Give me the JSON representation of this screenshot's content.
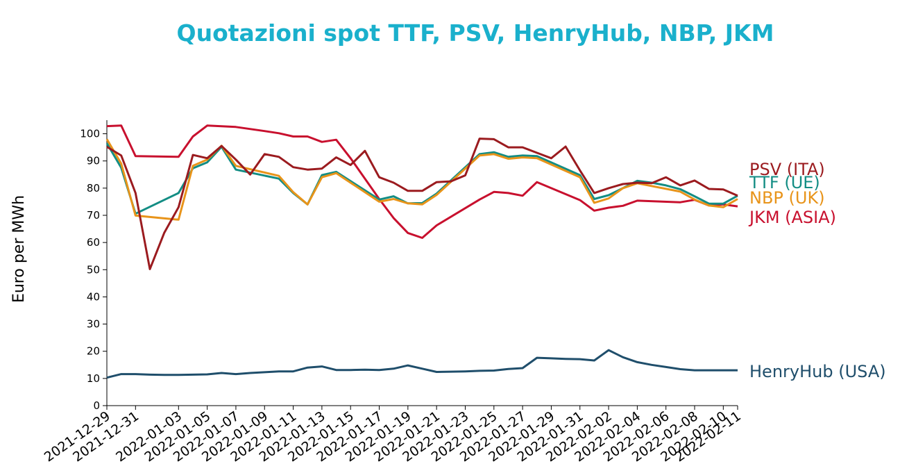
{
  "chart_data": {
    "type": "line",
    "title": "Quotazioni spot TTF, PSV, HenryHub, NBP, JKM",
    "xlabel": "",
    "ylabel": "Euro per MWh",
    "ylim": [
      0,
      105
    ],
    "yticks": [
      0,
      10,
      20,
      30,
      40,
      50,
      60,
      70,
      80,
      90,
      100
    ],
    "xlim": [
      "2021-12-29",
      "2022-02-11"
    ],
    "xtick_labels": [
      "2021-12-29",
      "2021-12-31",
      "2022-01-03",
      "2022-01-05",
      "2022-01-07",
      "2022-01-09",
      "2022-01-11",
      "2022-01-13",
      "2022-01-15",
      "2022-01-17",
      "2022-01-19",
      "2022-01-21",
      "2022-01-23",
      "2022-01-25",
      "2022-01-27",
      "2022-01-29",
      "2022-01-31",
      "2022-02-02",
      "2022-02-04",
      "2022-02-06",
      "2022-02-08",
      "2022-02-10",
      "2022-02-11"
    ],
    "grid": false,
    "legend": "right, labels at line ends",
    "series": [
      {
        "name": "HenryHub (USA)",
        "color": "#1f4e6b",
        "points": [
          [
            "2021-12-29",
            10.3
          ],
          [
            "2021-12-30",
            11.6
          ],
          [
            "2021-12-31",
            11.6
          ],
          [
            "2022-01-01",
            11.4
          ],
          [
            "2022-01-02",
            11.3
          ],
          [
            "2022-01-03",
            11.3
          ],
          [
            "2022-01-04",
            11.4
          ],
          [
            "2022-01-05",
            11.5
          ],
          [
            "2022-01-06",
            12.0
          ],
          [
            "2022-01-07",
            11.6
          ],
          [
            "2022-01-08",
            12.0
          ],
          [
            "2022-01-09",
            12.3
          ],
          [
            "2022-01-10",
            12.6
          ],
          [
            "2022-01-11",
            12.6
          ],
          [
            "2022-01-12",
            14.0
          ],
          [
            "2022-01-13",
            14.4
          ],
          [
            "2022-01-14",
            13.1
          ],
          [
            "2022-01-15",
            13.1
          ],
          [
            "2022-01-16",
            13.2
          ],
          [
            "2022-01-17",
            13.1
          ],
          [
            "2022-01-18",
            13.6
          ],
          [
            "2022-01-19",
            14.8
          ],
          [
            "2022-01-20",
            13.6
          ],
          [
            "2022-01-21",
            12.4
          ],
          [
            "2022-01-22",
            12.5
          ],
          [
            "2022-01-23",
            12.6
          ],
          [
            "2022-01-24",
            12.8
          ],
          [
            "2022-01-25",
            12.9
          ],
          [
            "2022-01-26",
            13.5
          ],
          [
            "2022-01-27",
            13.8
          ],
          [
            "2022-01-28",
            17.6
          ],
          [
            "2022-01-29",
            17.4
          ],
          [
            "2022-01-30",
            17.2
          ],
          [
            "2022-01-31",
            17.1
          ],
          [
            "2022-02-01",
            16.6
          ],
          [
            "2022-02-02",
            20.4
          ],
          [
            "2022-02-03",
            17.8
          ],
          [
            "2022-02-04",
            16.0
          ],
          [
            "2022-02-05",
            15.0
          ],
          [
            "2022-02-06",
            14.2
          ],
          [
            "2022-02-07",
            13.4
          ],
          [
            "2022-02-08",
            13.0
          ],
          [
            "2022-02-09",
            13.0
          ],
          [
            "2022-02-10",
            13.0
          ],
          [
            "2022-02-11",
            13.0
          ]
        ]
      },
      {
        "name": "JKM (ASIA)",
        "color": "#c8102e",
        "points": [
          [
            "2021-12-29",
            102.8
          ],
          [
            "2021-12-30",
            103.0
          ],
          [
            "2021-12-31",
            91.8
          ],
          [
            "2022-01-03",
            91.5
          ],
          [
            "2022-01-04",
            99.0
          ],
          [
            "2022-01-05",
            103.0
          ],
          [
            "2022-01-07",
            102.5
          ],
          [
            "2022-01-09",
            101.0
          ],
          [
            "2022-01-10",
            100.2
          ],
          [
            "2022-01-11",
            99.0
          ],
          [
            "2022-01-12",
            99.0
          ],
          [
            "2022-01-13",
            97.0
          ],
          [
            "2022-01-14",
            97.8
          ],
          [
            "2022-01-15",
            91.0
          ],
          [
            "2022-01-17",
            76.0
          ],
          [
            "2022-01-18",
            69.0
          ],
          [
            "2022-01-19",
            63.5
          ],
          [
            "2022-01-20",
            61.7
          ],
          [
            "2022-01-21",
            66.3
          ],
          [
            "2022-01-24",
            75.8
          ],
          [
            "2022-01-25",
            78.6
          ],
          [
            "2022-01-26",
            78.2
          ],
          [
            "2022-01-27",
            77.2
          ],
          [
            "2022-01-28",
            82.2
          ],
          [
            "2022-01-31",
            75.6
          ],
          [
            "2022-02-01",
            71.7
          ],
          [
            "2022-02-02",
            72.8
          ],
          [
            "2022-02-03",
            73.5
          ],
          [
            "2022-02-04",
            75.4
          ],
          [
            "2022-02-07",
            74.8
          ],
          [
            "2022-02-08",
            75.7
          ],
          [
            "2022-02-09",
            73.6
          ],
          [
            "2022-02-10",
            74.0
          ],
          [
            "2022-02-11",
            73.3
          ]
        ]
      },
      {
        "name": "TTF (UE)",
        "color": "#138d84",
        "points": [
          [
            "2021-12-29",
            96.5
          ],
          [
            "2021-12-30",
            87.5
          ],
          [
            "2021-12-31",
            70.6
          ],
          [
            "2022-01-03",
            78.2
          ],
          [
            "2022-01-04",
            87.3
          ],
          [
            "2022-01-05",
            89.5
          ],
          [
            "2022-01-06",
            95.2
          ],
          [
            "2022-01-07",
            86.8
          ],
          [
            "2022-01-10",
            83.5
          ],
          [
            "2022-01-11",
            78.2
          ],
          [
            "2022-01-12",
            74.0
          ],
          [
            "2022-01-13",
            84.8
          ],
          [
            "2022-01-14",
            86.0
          ],
          [
            "2022-01-17",
            75.8
          ],
          [
            "2022-01-18",
            77.0
          ],
          [
            "2022-01-19",
            74.4
          ],
          [
            "2022-01-20",
            74.5
          ],
          [
            "2022-01-21",
            78.0
          ],
          [
            "2022-01-24",
            92.5
          ],
          [
            "2022-01-25",
            93.2
          ],
          [
            "2022-01-26",
            91.5
          ],
          [
            "2022-01-27",
            92.0
          ],
          [
            "2022-01-28",
            91.8
          ],
          [
            "2022-01-31",
            84.8
          ],
          [
            "2022-02-01",
            76.0
          ],
          [
            "2022-02-02",
            77.4
          ],
          [
            "2022-02-03",
            80.0
          ],
          [
            "2022-02-04",
            82.7
          ],
          [
            "2022-02-05",
            82.0
          ],
          [
            "2022-02-06",
            81.0
          ],
          [
            "2022-02-07",
            79.6
          ],
          [
            "2022-02-08",
            77.0
          ],
          [
            "2022-02-09",
            74.3
          ],
          [
            "2022-02-10",
            74.3
          ],
          [
            "2022-02-11",
            77.2
          ]
        ]
      },
      {
        "name": "NBP (UK)",
        "color": "#e8941a",
        "points": [
          [
            "2021-12-29",
            98.0
          ],
          [
            "2021-12-30",
            89.0
          ],
          [
            "2021-12-31",
            69.9
          ],
          [
            "2022-01-03",
            68.4
          ],
          [
            "2022-01-04",
            88.2
          ],
          [
            "2022-01-05",
            90.5
          ],
          [
            "2022-01-06",
            95.6
          ],
          [
            "2022-01-07",
            88.2
          ],
          [
            "2022-01-10",
            84.5
          ],
          [
            "2022-01-11",
            78.5
          ],
          [
            "2022-01-12",
            74.0
          ],
          [
            "2022-01-13",
            84.0
          ],
          [
            "2022-01-14",
            85.5
          ],
          [
            "2022-01-17",
            75.0
          ],
          [
            "2022-01-18",
            76.0
          ],
          [
            "2022-01-19",
            74.4
          ],
          [
            "2022-01-20",
            74.0
          ],
          [
            "2022-01-21",
            77.5
          ],
          [
            "2022-01-24",
            92.0
          ],
          [
            "2022-01-25",
            92.5
          ],
          [
            "2022-01-26",
            90.8
          ],
          [
            "2022-01-27",
            91.3
          ],
          [
            "2022-01-28",
            91.0
          ],
          [
            "2022-01-31",
            84.0
          ],
          [
            "2022-02-01",
            74.6
          ],
          [
            "2022-02-02",
            76.2
          ],
          [
            "2022-02-03",
            80.0
          ],
          [
            "2022-02-04",
            81.8
          ],
          [
            "2022-02-07",
            78.7
          ],
          [
            "2022-02-08",
            75.8
          ],
          [
            "2022-02-09",
            73.6
          ],
          [
            "2022-02-10",
            73.0
          ],
          [
            "2022-02-11",
            76.0
          ]
        ]
      },
      {
        "name": "PSV (ITA)",
        "color": "#9b1b1f",
        "points": [
          [
            "2021-12-29",
            95.2
          ],
          [
            "2021-12-30",
            92.0
          ],
          [
            "2021-12-31",
            78.2
          ],
          [
            "2022-01-01",
            50.2
          ],
          [
            "2022-01-02",
            63.5
          ],
          [
            "2022-01-03",
            73.0
          ],
          [
            "2022-01-04",
            92.2
          ],
          [
            "2022-01-05",
            91.0
          ],
          [
            "2022-01-06",
            95.5
          ],
          [
            "2022-01-07",
            90.5
          ],
          [
            "2022-01-08",
            85.0
          ],
          [
            "2022-01-09",
            92.5
          ],
          [
            "2022-01-10",
            91.5
          ],
          [
            "2022-01-11",
            87.7
          ],
          [
            "2022-01-12",
            86.8
          ],
          [
            "2022-01-13",
            87.2
          ],
          [
            "2022-01-14",
            91.3
          ],
          [
            "2022-01-15",
            88.5
          ],
          [
            "2022-01-16",
            93.7
          ],
          [
            "2022-01-17",
            84.0
          ],
          [
            "2022-01-18",
            82.0
          ],
          [
            "2022-01-19",
            79.0
          ],
          [
            "2022-01-20",
            79.0
          ],
          [
            "2022-01-21",
            82.2
          ],
          [
            "2022-01-22",
            82.5
          ],
          [
            "2022-01-23",
            84.7
          ],
          [
            "2022-01-24",
            98.2
          ],
          [
            "2022-01-25",
            98.0
          ],
          [
            "2022-01-26",
            95.0
          ],
          [
            "2022-01-27",
            95.0
          ],
          [
            "2022-01-28",
            93.0
          ],
          [
            "2022-01-29",
            91.0
          ],
          [
            "2022-01-30",
            95.3
          ],
          [
            "2022-01-31",
            86.5
          ],
          [
            "2022-02-01",
            78.2
          ],
          [
            "2022-02-02",
            80.0
          ],
          [
            "2022-02-03",
            81.5
          ],
          [
            "2022-02-04",
            82.0
          ],
          [
            "2022-02-05",
            81.8
          ],
          [
            "2022-02-06",
            84.0
          ],
          [
            "2022-02-07",
            81.0
          ],
          [
            "2022-02-08",
            82.8
          ],
          [
            "2022-02-09",
            79.7
          ],
          [
            "2022-02-10",
            79.5
          ],
          [
            "2022-02-11",
            77.2
          ]
        ]
      }
    ]
  },
  "colors": {
    "title": "#1ab0cc"
  }
}
